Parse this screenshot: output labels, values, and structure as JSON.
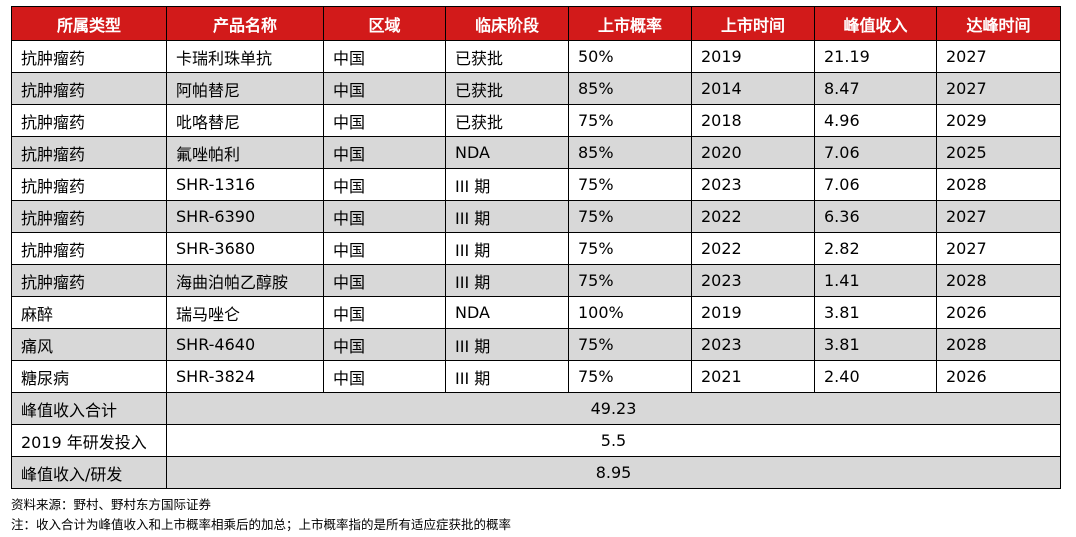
{
  "table": {
    "headers": [
      "所属类型",
      "产品名称",
      "区域",
      "临床阶段",
      "上市概率",
      "上市时间",
      "峰值收入",
      "达峰时间"
    ],
    "rows": [
      {
        "type": "抗肿瘤药",
        "product": "卡瑞利珠单抗",
        "region": "中国",
        "stage": "已获批",
        "prob": "50%",
        "launch": "2019",
        "peak": "21.19",
        "peak_year": "2027"
      },
      {
        "type": "抗肿瘤药",
        "product": "阿帕替尼",
        "region": "中国",
        "stage": "已获批",
        "prob": "85%",
        "launch": "2014",
        "peak": "8.47",
        "peak_year": "2027"
      },
      {
        "type": "抗肿瘤药",
        "product": "吡咯替尼",
        "region": "中国",
        "stage": "已获批",
        "prob": "75%",
        "launch": "2018",
        "peak": "4.96",
        "peak_year": "2029"
      },
      {
        "type": "抗肿瘤药",
        "product": "氟唑帕利",
        "region": "中国",
        "stage": "NDA",
        "prob": "85%",
        "launch": "2020",
        "peak": "7.06",
        "peak_year": "2025"
      },
      {
        "type": "抗肿瘤药",
        "product": "SHR-1316",
        "region": "中国",
        "stage": "III 期",
        "prob": "75%",
        "launch": "2023",
        "peak": "7.06",
        "peak_year": "2028"
      },
      {
        "type": "抗肿瘤药",
        "product": "SHR-6390",
        "region": "中国",
        "stage": "III 期",
        "prob": "75%",
        "launch": "2022",
        "peak": "6.36",
        "peak_year": "2027"
      },
      {
        "type": "抗肿瘤药",
        "product": "SHR-3680",
        "region": "中国",
        "stage": "III 期",
        "prob": "75%",
        "launch": "2022",
        "peak": "2.82",
        "peak_year": "2027"
      },
      {
        "type": "抗肿瘤药",
        "product": "海曲泊帕乙醇胺",
        "region": "中国",
        "stage": "III 期",
        "prob": "75%",
        "launch": "2023",
        "peak": "1.41",
        "peak_year": "2028"
      },
      {
        "type": "麻醉",
        "product": "瑞马唑仑",
        "region": "中国",
        "stage": "NDA",
        "prob": "100%",
        "launch": "2019",
        "peak": "3.81",
        "peak_year": "2026"
      },
      {
        "type": "痛风",
        "product": "SHR-4640",
        "region": "中国",
        "stage": "III 期",
        "prob": "75%",
        "launch": "2023",
        "peak": "3.81",
        "peak_year": "2028"
      },
      {
        "type": "糖尿病",
        "product": "SHR-3824",
        "region": "中国",
        "stage": "III 期",
        "prob": "75%",
        "launch": "2021",
        "peak": "2.40",
        "peak_year": "2026"
      }
    ],
    "summary": [
      {
        "label": "峰值收入合计",
        "value": "49.23"
      },
      {
        "label": "2019 年研发投入",
        "value": "5.5"
      },
      {
        "label": "峰值收入/研发",
        "value": "8.95"
      }
    ]
  },
  "notes": {
    "source": "资料来源：野村、野村东方国际证券",
    "note": "注：收入合计为峰值收入和上市概率相乘后的加总；上市概率指的是所有适应症获批的概率"
  },
  "colors": {
    "header_bg": "#d21a1a",
    "header_text": "#ffffff",
    "shaded_row": "#d8d8d8"
  }
}
